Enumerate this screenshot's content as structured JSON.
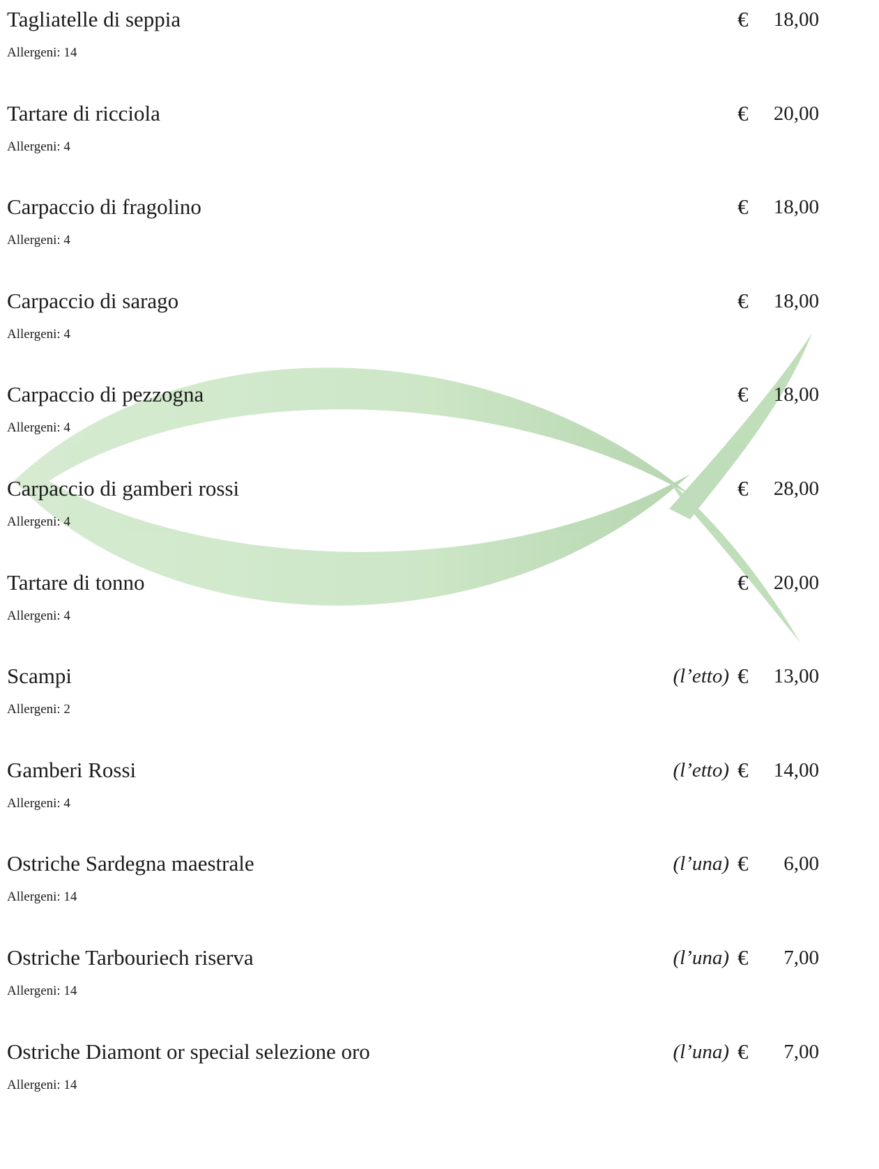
{
  "items": [
    {
      "name": "Tagliatelle di seppia",
      "allergens": "Allergeni: 14",
      "currency": "€",
      "price": "18,00"
    },
    {
      "name": "Tartare di ricciola",
      "allergens": "Allergeni: 4",
      "currency": "€",
      "price": "20,00"
    },
    {
      "name": "Carpaccio di fragolino",
      "allergens": "Allergeni: 4",
      "currency": "€",
      "price": "18,00"
    },
    {
      "name": "Carpaccio di sarago",
      "allergens": "Allergeni: 4",
      "currency": "€",
      "price": "18,00"
    },
    {
      "name": "Carpaccio di pezzogna",
      "allergens": "Allergeni: 4",
      "currency": "€",
      "price": "18,00"
    },
    {
      "name": "Carpaccio di gamberi rossi",
      "allergens": "Allergeni: 4",
      "currency": "€",
      "price": "28,00"
    },
    {
      "name": "Tartare di tonno",
      "allergens": "Allergeni: 4",
      "currency": "€",
      "price": "20,00"
    },
    {
      "name": "Scampi",
      "allergens": "Allergeni: 2",
      "unit": "(l’etto)",
      "currency": "€",
      "price": "13,00"
    },
    {
      "name": "Gamberi Rossi",
      "allergens": "Allergeni: 4",
      "unit": "(l’etto)",
      "currency": "€",
      "price": "14,00"
    },
    {
      "name": "Ostriche Sardegna maestrale",
      "allergens": "Allergeni: 14",
      "unit": "(l’una)",
      "currency": "€",
      "price": "6,00"
    },
    {
      "name": "Ostriche Tarbouriech riserva",
      "allergens": "Allergeni: 14",
      "unit": "(l’una)",
      "currency": "€",
      "price": "7,00"
    },
    {
      "name": "Ostriche Diamont or special selezione oro",
      "allergens": "Allergeni: 14",
      "unit": "(l’una)",
      "currency": "€",
      "price": "7,00"
    }
  ]
}
